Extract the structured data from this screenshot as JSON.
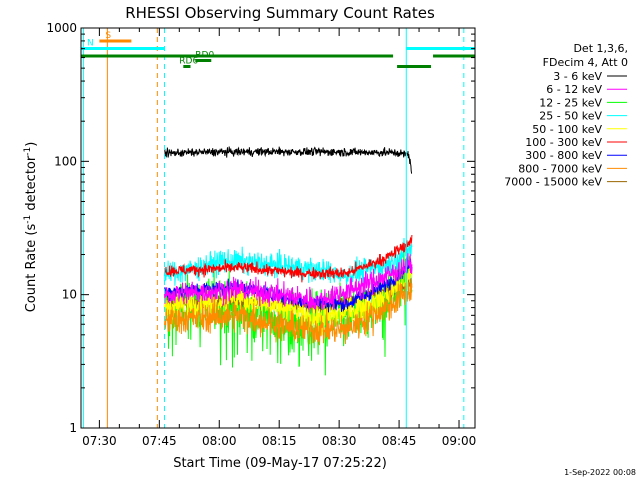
{
  "chart_data": {
    "type": "line",
    "title": "RHESSI Observing Summary Count Rates",
    "xlabel": "Start Time (09-May-17 07:25:22)",
    "ylabel_main": "Count Rate (s",
    "ylabel_sup1": "-1",
    "ylabel_mid": " detector",
    "ylabel_sup2": "-1",
    "ylabel_end": ")",
    "yscale": "log",
    "ylim": [
      1,
      1000
    ],
    "xlim_min": [
      445.4,
      544.0
    ],
    "x_ticks": [
      {
        "label": "07:30",
        "t": 450
      },
      {
        "label": "07:45",
        "t": 465
      },
      {
        "label": "08:00",
        "t": 480
      },
      {
        "label": "08:15",
        "t": 495
      },
      {
        "label": "08:30",
        "t": 510
      },
      {
        "label": "08:45",
        "t": 525
      },
      {
        "label": "09:00",
        "t": 540
      }
    ],
    "y_ticks": [
      {
        "label": "1",
        "v": 1
      },
      {
        "label": "10",
        "v": 10
      },
      {
        "label": "100",
        "v": 100
      },
      {
        "label": "1000",
        "v": 1000
      }
    ],
    "legend_header": [
      "Det 1,3,6,",
      "FDecim 4, Att 0"
    ],
    "legend_placement": "right",
    "series": [
      {
        "name": "3 - 6 keV",
        "color": "#000000",
        "t_range": [
          466.3,
          528.3
        ],
        "profile": [
          [
            466.3,
            115
          ],
          [
            475,
            117
          ],
          [
            490,
            118
          ],
          [
            505,
            118
          ],
          [
            515,
            117
          ],
          [
            524,
            116
          ],
          [
            527.5,
            112
          ],
          [
            528.3,
            78
          ]
        ],
        "noise": 0.035
      },
      {
        "name": "6 - 12 keV",
        "color": "#ff00ff",
        "t_range": [
          466.3,
          528.3
        ],
        "profile": [
          [
            466.3,
            10
          ],
          [
            485,
            11
          ],
          [
            505,
            9
          ],
          [
            520,
            13
          ],
          [
            528,
            17
          ]
        ],
        "noise": 0.1
      },
      {
        "name": "12 - 25 keV",
        "color": "#00ff00",
        "t_range": [
          466.3,
          528.3
        ],
        "profile": [
          [
            466.3,
            8
          ],
          [
            480,
            8.5
          ],
          [
            500,
            6
          ],
          [
            515,
            7
          ],
          [
            528,
            15
          ]
        ],
        "noise": 0.25
      },
      {
        "name": "25 - 50 keV",
        "color": "#00ffff",
        "t_range": [
          466.3,
          528.3
        ],
        "profile": [
          [
            466.3,
            14
          ],
          [
            482,
            18
          ],
          [
            500,
            16
          ],
          [
            512,
            14
          ],
          [
            522,
            17
          ],
          [
            528,
            22
          ]
        ],
        "noise": 0.1
      },
      {
        "name": "50 - 100 keV",
        "color": "#ffff00",
        "t_range": [
          466.3,
          528.3
        ],
        "profile": [
          [
            466.3,
            8
          ],
          [
            485,
            9.5
          ],
          [
            505,
            6.5
          ],
          [
            520,
            9
          ],
          [
            528,
            14
          ]
        ],
        "noise": 0.12
      },
      {
        "name": "100 - 300 keV",
        "color": "#ff0000",
        "t_range": [
          466.3,
          528.3
        ],
        "profile": [
          [
            466.3,
            15
          ],
          [
            485,
            16
          ],
          [
            500,
            14.5
          ],
          [
            512,
            14.5
          ],
          [
            522,
            19
          ],
          [
            528,
            25
          ]
        ],
        "noise": 0.05
      },
      {
        "name": "300 - 800 keV",
        "color": "#0000ff",
        "t_range": [
          466.3,
          528.3
        ],
        "profile": [
          [
            466.3,
            10.5
          ],
          [
            485,
            11.5
          ],
          [
            500,
            9
          ],
          [
            512,
            8.5
          ],
          [
            522,
            12
          ],
          [
            528,
            17
          ]
        ],
        "noise": 0.06
      },
      {
        "name": "800 - 7000 keV",
        "color": "#ff8c00",
        "t_range": [
          466.3,
          528.3
        ],
        "profile": [
          [
            466.3,
            6.5
          ],
          [
            485,
            7
          ],
          [
            500,
            5.5
          ],
          [
            512,
            5.5
          ],
          [
            522,
            8
          ],
          [
            528,
            11
          ]
        ],
        "noise": 0.13
      },
      {
        "name": "7000 - 15000 keV",
        "color": "#996600",
        "t_range": [
          466.3,
          528.3
        ],
        "profile": [
          [
            466.3,
            8.5
          ],
          [
            485,
            9
          ],
          [
            505,
            8
          ],
          [
            528,
            12
          ]
        ],
        "noise": 0.05
      }
    ],
    "bars": [
      {
        "label": "S",
        "color": "#ff8800",
        "segments": [
          [
            450,
            458
          ]
        ],
        "level": 0
      },
      {
        "label": "N",
        "color": "#00ffff",
        "segments": [
          [
            445.4,
            466.3
          ],
          [
            526.8,
            544
          ]
        ],
        "level": 1
      },
      {
        "label": "",
        "color": "#008000",
        "segments": [
          [
            445.4,
            523.5
          ],
          [
            533.5,
            544
          ]
        ],
        "level": 2
      },
      {
        "label": "RD0",
        "color": "#008000",
        "segments": [
          [
            474,
            478
          ]
        ],
        "level": 2.6
      },
      {
        "label": "RD6",
        "color": "#008000",
        "segments": [
          [
            471,
            472.8
          ],
          [
            524.5,
            533
          ]
        ],
        "level": 3.4
      }
    ],
    "vlines": [
      {
        "t": 446.0,
        "color": "#00ffff",
        "style": "solid"
      },
      {
        "t": 452.0,
        "color": "#ff8800",
        "style": "solid"
      },
      {
        "t": 464.5,
        "color": "#ff8800",
        "style": "dash"
      },
      {
        "t": 466.3,
        "color": "#00ffff",
        "style": "dash"
      },
      {
        "t": 526.8,
        "color": "#00ffff",
        "style": "solid"
      },
      {
        "t": 541.2,
        "color": "#00ffff",
        "style": "dash"
      }
    ]
  },
  "footer_date": "1-Sep-2022 00:08"
}
